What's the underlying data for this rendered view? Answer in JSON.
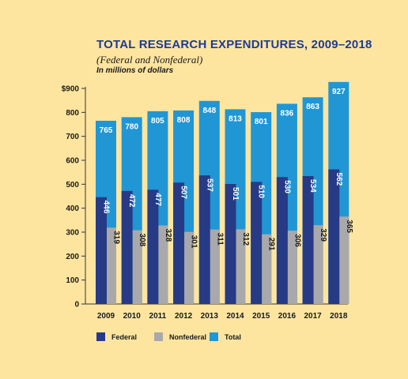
{
  "header": {
    "title": "TOTAL RESEARCH EXPENDITURES, 2009–2018",
    "subtitle": "(Federal and Nonfederal)",
    "units": "In millions of dollars"
  },
  "colors": {
    "federal": "#263a86",
    "nonfederal": "#a9a9ab",
    "total": "#2196d4",
    "background": "#fde5a0",
    "title": "#1f3a93"
  },
  "chart_data": {
    "type": "bar",
    "title": "TOTAL RESEARCH EXPENDITURES, 2009–2018",
    "subtitle": "(Federal and Nonfederal)",
    "ylabel": "In millions of dollars",
    "xlabel": "",
    "ylim": [
      0,
      900
    ],
    "yticks": [
      0,
      100,
      200,
      300,
      400,
      500,
      600,
      700,
      800,
      900
    ],
    "ytick_labels": [
      "0",
      "100",
      "200",
      "300",
      "400",
      "500",
      "600",
      "700",
      "800",
      "$900"
    ],
    "grid": false,
    "legend_position": "bottom-left",
    "categories": [
      "2009",
      "2010",
      "2011",
      "2012",
      "2013",
      "2014",
      "2015",
      "2016",
      "2017",
      "2018"
    ],
    "series": [
      {
        "name": "Federal",
        "values": [
          446,
          472,
          477,
          507,
          537,
          501,
          510,
          530,
          534,
          562
        ]
      },
      {
        "name": "Nonfederal",
        "values": [
          319,
          308,
          328,
          301,
          311,
          312,
          291,
          306,
          329,
          365
        ]
      },
      {
        "name": "Total",
        "values": [
          765,
          780,
          805,
          808,
          848,
          813,
          801,
          836,
          863,
          927
        ]
      }
    ]
  }
}
